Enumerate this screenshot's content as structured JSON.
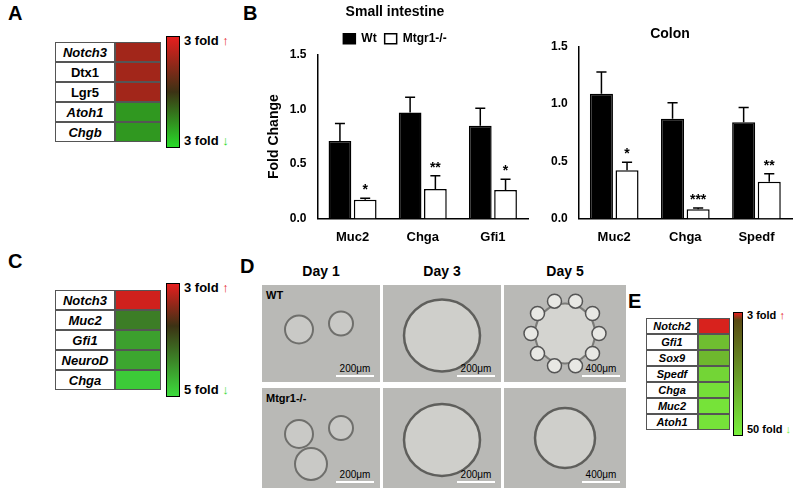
{
  "chart_data": [
    {
      "type": "bar",
      "title": "Small intestine",
      "y_label": "Fold Change",
      "categories": [
        "Muc2",
        "Chga",
        "Gfi1"
      ],
      "series": [
        {
          "name": "Wt",
          "color": "#000000",
          "values": [
            0.71,
            0.97,
            0.85
          ],
          "errors": [
            0.16,
            0.14,
            0.16
          ]
        },
        {
          "name": "Mtgr1-/-",
          "color": "#ffffff",
          "values": [
            0.17,
            0.27,
            0.26
          ],
          "errors": [
            0.015,
            0.12,
            0.1
          ]
        }
      ],
      "significance": [
        "*",
        "**",
        "*"
      ],
      "ylim": [
        0,
        1.5
      ],
      "yticks": [
        {
          "value": 0,
          "label": "0.0"
        },
        {
          "value": 0.5,
          "label": "0.5"
        },
        {
          "value": 1,
          "label": "1.0"
        },
        {
          "value": 1.5,
          "label": "1.5"
        }
      ],
      "grid": false,
      "legend": "top"
    },
    {
      "type": "bar",
      "title": "Colon",
      "categories": [
        "Muc2",
        "Chga",
        "Spedf"
      ],
      "series": [
        {
          "name": "Wt",
          "color": "#000000",
          "values": [
            1.09,
            0.87,
            0.84
          ],
          "errors": [
            0.19,
            0.14,
            0.13
          ]
        },
        {
          "name": "Mtgr1-/-",
          "color": "#ffffff",
          "values": [
            0.42,
            0.08,
            0.32
          ],
          "errors": [
            0.07,
            0.01,
            0.07
          ]
        }
      ],
      "significance": [
        "*",
        "***",
        "**"
      ],
      "ylim": [
        0,
        1.5
      ],
      "yticks": [
        {
          "value": 0,
          "label": "0.0"
        },
        {
          "value": 0.5,
          "label": "0.5"
        },
        {
          "value": 1,
          "label": "1.0"
        },
        {
          "value": 1.5,
          "label": "1.5"
        }
      ],
      "grid": false
    }
  ],
  "panels": [
    {
      "label": "A",
      "heatmap": {
        "rows": [
          {
            "gene": "Notch3",
            "italic": true,
            "value": 1.8
          },
          {
            "gene": "Dtx1",
            "italic": false,
            "value": 1.8
          },
          {
            "gene": "Lgr5",
            "italic": false,
            "value": 1.8
          },
          {
            "gene": "Atoh1",
            "italic": true,
            "value": -1.8
          },
          {
            "gene": "Chgb",
            "italic": true,
            "value": -1.8
          }
        ],
        "colorbar": {
          "max": 3,
          "min": -3,
          "top_label": "3 fold ↑",
          "bottom_label": "3 fold ↓",
          "colors": [
            "#e61e1e",
            "#3c3214",
            "#28dc28"
          ]
        }
      }
    },
    {
      "label": "B"
    },
    {
      "label": "C",
      "heatmap": {
        "rows": [
          {
            "gene": "Notch3",
            "italic": true,
            "value": 2.6
          },
          {
            "gene": "Muc2",
            "italic": true,
            "value": -2.2
          },
          {
            "gene": "Gfi1",
            "italic": true,
            "value": -3.2
          },
          {
            "gene": "NeuroD",
            "italic": true,
            "value": -3.4
          },
          {
            "gene": "Chga",
            "italic": true,
            "value": -4.5
          }
        ],
        "colorbar": {
          "max": 3,
          "min": -5,
          "top_label": "3 fold ↑",
          "bottom_label": "5 fold ↓",
          "colors": [
            "#e61e1e",
            "#3c3214",
            "#3cdc3c"
          ]
        }
      }
    },
    {
      "label": "D",
      "micrographs": {
        "columns": [
          "Day 1",
          "Day 3",
          "Day 5"
        ],
        "rows": [
          "WT",
          "Mtgr1-/-"
        ],
        "scale_bars": [
          [
            "200μm",
            "200μm",
            "400μm"
          ],
          [
            "200μm",
            "200μm",
            "400μm"
          ]
        ]
      }
    },
    {
      "label": "E",
      "heatmap": {
        "rows": [
          {
            "gene": "Notch2",
            "italic": true,
            "value": 2.7
          },
          {
            "gene": "Gfi1",
            "italic": true,
            "value": -35
          },
          {
            "gene": "Sox9",
            "italic": true,
            "value": -33
          },
          {
            "gene": "Spedf",
            "italic": true,
            "value": -42
          },
          {
            "gene": "Chga",
            "italic": true,
            "value": -45
          },
          {
            "gene": "Muc2",
            "italic": true,
            "value": -46
          },
          {
            "gene": "Atoh1",
            "italic": true,
            "value": -46
          }
        ],
        "colorbar": {
          "max": 3,
          "min": -50,
          "top_label": "3 fold ↑",
          "bottom_label": "50 fold ↓",
          "colors": [
            "#e61e1e",
            "#5a4a14",
            "#78f03c"
          ]
        }
      }
    }
  ]
}
